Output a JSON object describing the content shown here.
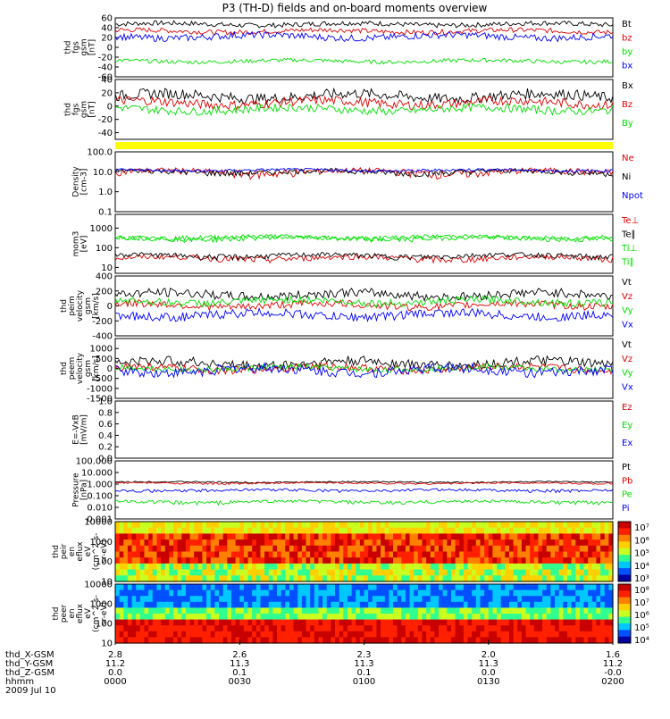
{
  "title": "P3 (TH-D) fields and on-board moments overview",
  "colors": {
    "black": "#000000",
    "red": "#e00000",
    "green": "#00e000",
    "blue": "#0000ff",
    "yellow": "#ffff00"
  },
  "chart_data": [
    {
      "type": "line",
      "ylabel": [
        "thd",
        "fgs",
        "gsm",
        "[nT]"
      ],
      "ylim": [
        -60,
        60
      ],
      "ticks": [
        "60",
        "40",
        "20",
        "0",
        "-20",
        "-40",
        "-60"
      ],
      "series": [
        {
          "name": "Bt",
          "color": "black",
          "base": 47,
          "amp": 5
        },
        {
          "name": "bz",
          "color": "red",
          "base": 33,
          "amp": 5
        },
        {
          "name": "by",
          "color": "green",
          "base": -28,
          "amp": 4
        },
        {
          "name": "bx",
          "color": "blue",
          "base": 22,
          "amp": 7
        }
      ]
    },
    {
      "type": "line",
      "ylabel": [
        "thd",
        "fgs",
        "gsm",
        "[nT]"
      ],
      "ylim": [
        -50,
        40
      ],
      "ticks": [
        "40",
        "20",
        "0",
        "-20",
        "-40"
      ],
      "series": [
        {
          "name": "Bx",
          "color": "black",
          "base": 15,
          "amp": 8
        },
        {
          "name": "Bz",
          "color": "red",
          "base": 5,
          "amp": 7
        },
        {
          "name": "By",
          "color": "green",
          "base": -5,
          "amp": 6
        }
      ]
    },
    {
      "type": "bar",
      "ylabel": [],
      "color": "yellow"
    },
    {
      "type": "line",
      "scale": "log",
      "ylabel": [
        "Density",
        "[cm-3]"
      ],
      "ylim": [
        0.1,
        100
      ],
      "ticks": [
        "100.0",
        "10.0",
        "1.0",
        "0.1"
      ],
      "series": [
        {
          "name": "Ne",
          "color": "red",
          "base": 10,
          "amp": 4
        },
        {
          "name": "Ni",
          "color": "black",
          "base": 10,
          "amp": 3
        },
        {
          "name": "Npot",
          "color": "blue",
          "base": 12,
          "amp": 2
        }
      ]
    },
    {
      "type": "line",
      "scale": "log",
      "ylabel": [
        "mom3",
        "[eV]"
      ],
      "ylim": [
        5,
        5000
      ],
      "ticks": [
        "1000",
        "100",
        "10"
      ],
      "series": [
        {
          "name": "Te⊥",
          "color": "red",
          "base": 30,
          "amp": 10
        },
        {
          "name": "Te∥",
          "color": "black",
          "base": 40,
          "amp": 12
        },
        {
          "name": "Ti⊥",
          "color": "green",
          "base": 300,
          "amp": 80
        },
        {
          "name": "Ti∥",
          "color": "green",
          "base": 350,
          "amp": 90
        }
      ]
    },
    {
      "type": "line",
      "ylabel": [
        "thd",
        "peim",
        "velocity",
        "gsm",
        "[km/s]"
      ],
      "ylim": [
        -400,
        400
      ],
      "ticks": [
        "400",
        "200",
        "0",
        "-200",
        "-400"
      ],
      "series": [
        {
          "name": "Vt",
          "color": "black",
          "base": 150,
          "amp": 60
        },
        {
          "name": "Vz",
          "color": "red",
          "base": 10,
          "amp": 50
        },
        {
          "name": "Vy",
          "color": "green",
          "base": 60,
          "amp": 50
        },
        {
          "name": "Vx",
          "color": "blue",
          "base": -120,
          "amp": 60
        }
      ]
    },
    {
      "type": "line",
      "ylabel": [
        "thd",
        "peem",
        "velocity",
        "gsm",
        "[km/s]"
      ],
      "ylim": [
        -1500,
        1500
      ],
      "ticks": [
        "1000",
        "500",
        "0",
        "-500",
        "-1000",
        "-1500"
      ],
      "series": [
        {
          "name": "Vt",
          "color": "black",
          "base": 250,
          "amp": 250
        },
        {
          "name": "Vz",
          "color": "red",
          "base": 0,
          "amp": 200
        },
        {
          "name": "Vy",
          "color": "green",
          "base": 0,
          "amp": 150
        },
        {
          "name": "Vx",
          "color": "blue",
          "base": -100,
          "amp": 250
        }
      ]
    },
    {
      "type": "line",
      "ylabel": [
        "E=-VxB",
        "[mV/m]"
      ],
      "ylim": [
        0,
        1
      ],
      "ticks": [
        "1.0",
        "0.8",
        "0.6",
        "0.4",
        "0.2",
        "0.0"
      ],
      "series": [
        {
          "name": "Ez",
          "color": "red"
        },
        {
          "name": "Ey",
          "color": "green"
        },
        {
          "name": "Ex",
          "color": "blue"
        }
      ]
    },
    {
      "type": "line",
      "scale": "log",
      "ylabel": [
        "Pressure",
        "[nPa]"
      ],
      "ylim": [
        0.001,
        100
      ],
      "ticks": [
        "100.000",
        "10.000",
        "1.000",
        "0.100",
        "0.010",
        "0.001"
      ],
      "series": [
        {
          "name": "Pt",
          "color": "black",
          "base": 1.5,
          "amp": 0.2
        },
        {
          "name": "Pb",
          "color": "red",
          "base": 1.2,
          "amp": 0.2
        },
        {
          "name": "Pe",
          "color": "green",
          "base": 0.03,
          "amp": 0.01
        },
        {
          "name": "Pi",
          "color": "blue",
          "base": 0.3,
          "amp": 0.08
        }
      ]
    },
    {
      "type": "heatmap",
      "scale": "log",
      "ylabel": [
        "thd",
        "peir",
        "en",
        "eflux",
        "eV",
        "(cm^2-s-",
        "sr-eV)"
      ],
      "ylim": [
        10,
        10000
      ],
      "ticks": [
        "10000",
        "1000",
        "100",
        "10"
      ],
      "colorbar_ticks": [
        "10⁷",
        "10⁶",
        "10⁵",
        "10⁴",
        "10³"
      ]
    },
    {
      "type": "heatmap",
      "scale": "log",
      "ylabel": [
        "thd",
        "peer",
        "en",
        "eflux",
        "eV",
        "(cm^2-s-",
        "sr-eV)"
      ],
      "ylim": [
        10,
        10000
      ],
      "ticks": [
        "10000",
        "1000",
        "100",
        "10"
      ],
      "colorbar_ticks": [
        "10⁸",
        "10⁷",
        "10⁶",
        "10⁵",
        "10⁴"
      ]
    }
  ],
  "xaxis": {
    "row_labels": [
      "thd_X-GSM",
      "thd_Y-GSM",
      "thd_Z-GSM",
      "hhmm",
      "2009 Jul 10"
    ],
    "columns": [
      [
        "2.8",
        "11.2",
        "0.0",
        "0000"
      ],
      [
        "2.6",
        "11.3",
        "0.1",
        "0030"
      ],
      [
        "2.3",
        "11.3",
        "0.1",
        "0100"
      ],
      [
        "2.0",
        "11.3",
        "0.0",
        "0130"
      ],
      [
        "1.6",
        "11.2",
        "-0.0",
        "0200"
      ]
    ]
  }
}
